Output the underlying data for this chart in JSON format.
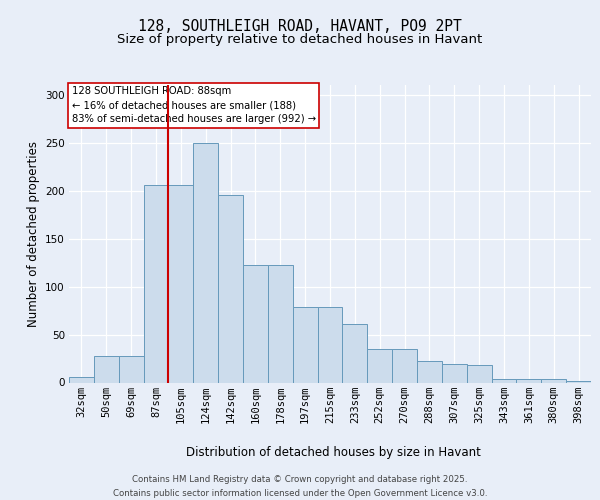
{
  "title_line1": "128, SOUTHLEIGH ROAD, HAVANT, PO9 2PT",
  "title_line2": "Size of property relative to detached houses in Havant",
  "xlabel": "Distribution of detached houses by size in Havant",
  "ylabel": "Number of detached properties",
  "bin_labels": [
    "32sqm",
    "50sqm",
    "69sqm",
    "87sqm",
    "105sqm",
    "124sqm",
    "142sqm",
    "160sqm",
    "178sqm",
    "197sqm",
    "215sqm",
    "233sqm",
    "252sqm",
    "270sqm",
    "288sqm",
    "307sqm",
    "325sqm",
    "343sqm",
    "361sqm",
    "380sqm",
    "398sqm"
  ],
  "bar_heights": [
    6,
    28,
    28,
    206,
    206,
    250,
    195,
    122,
    122,
    79,
    79,
    61,
    35,
    35,
    22,
    19,
    18,
    4,
    4,
    4,
    2
  ],
  "bar_color": "#ccdcec",
  "bar_edge_color": "#6699bb",
  "background_color": "#e8eef8",
  "grid_color": "#ffffff",
  "red_line_bin": 3,
  "red_line_color": "#cc0000",
  "annotation_text": "128 SOUTHLEIGH ROAD: 88sqm\n← 16% of detached houses are smaller (188)\n83% of semi-detached houses are larger (992) →",
  "annotation_box_color": "#ffffff",
  "annotation_box_edge": "#cc0000",
  "ylim": [
    0,
    310
  ],
  "yticks": [
    0,
    50,
    100,
    150,
    200,
    250,
    300
  ],
  "footer_text": "Contains HM Land Registry data © Crown copyright and database right 2025.\nContains public sector information licensed under the Open Government Licence v3.0.",
  "title_fontsize": 10.5,
  "subtitle_fontsize": 9.5,
  "axis_label_fontsize": 8.5,
  "tick_fontsize": 7.5,
  "annotation_fontsize": 7.2,
  "footer_fontsize": 6.2
}
